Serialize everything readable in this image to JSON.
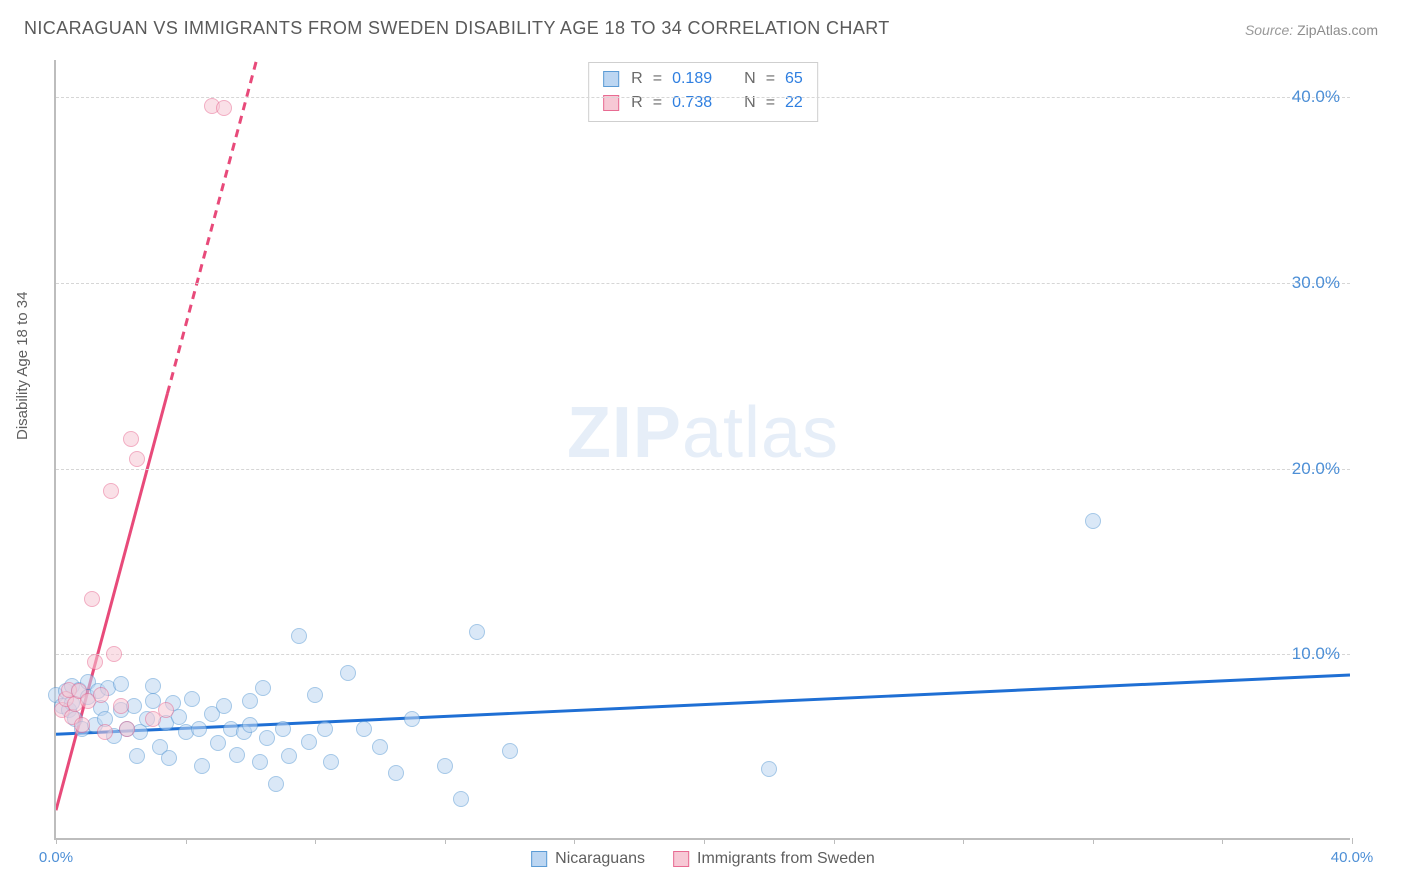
{
  "title": "NICARAGUAN VS IMMIGRANTS FROM SWEDEN DISABILITY AGE 18 TO 34 CORRELATION CHART",
  "source_label": "Source:",
  "source_value": "ZipAtlas.com",
  "y_axis_label": "Disability Age 18 to 34",
  "watermark_a": "ZIP",
  "watermark_b": "atlas",
  "chart": {
    "type": "scatter",
    "xlim": [
      0,
      40
    ],
    "ylim": [
      0,
      42
    ],
    "x_ticks": [
      0,
      20,
      40
    ],
    "x_tick_labels": [
      "0.0%",
      "",
      "40.0%"
    ],
    "y_grid": [
      10,
      20,
      30,
      40
    ],
    "y_grid_labels": [
      "10.0%",
      "20.0%",
      "30.0%",
      "40.0%"
    ],
    "minor_x_ticks": [
      4,
      8,
      12,
      16,
      24,
      28,
      32,
      36
    ],
    "background_color": "#ffffff",
    "grid_color": "#d6d6d6",
    "axis_color": "#bdbdbd",
    "marker_radius": 8,
    "marker_stroke_width": 1.5,
    "series": [
      {
        "name": "Nicaraguans",
        "fill": "#bcd6f2",
        "stroke": "#5b9bd5",
        "fill_opacity": 0.55,
        "R": "0.189",
        "N": "65",
        "trend": {
          "x1": 0,
          "y1": 5.6,
          "x2": 40,
          "y2": 8.8,
          "color": "#1f6fd4",
          "width": 3,
          "dash": null
        },
        "points": [
          [
            0.0,
            7.8
          ],
          [
            0.2,
            7.2
          ],
          [
            0.3,
            8.0
          ],
          [
            0.4,
            7.0
          ],
          [
            0.5,
            7.4
          ],
          [
            0.5,
            8.3
          ],
          [
            0.6,
            6.5
          ],
          [
            0.7,
            8.1
          ],
          [
            0.8,
            6.0
          ],
          [
            1.0,
            7.7
          ],
          [
            1.0,
            8.5
          ],
          [
            1.2,
            6.2
          ],
          [
            1.3,
            8.0
          ],
          [
            1.4,
            7.1
          ],
          [
            1.5,
            6.5
          ],
          [
            1.6,
            8.2
          ],
          [
            1.8,
            5.6
          ],
          [
            2.0,
            7.0
          ],
          [
            2.0,
            8.4
          ],
          [
            2.2,
            6.0
          ],
          [
            2.4,
            7.2
          ],
          [
            2.5,
            4.5
          ],
          [
            2.6,
            5.8
          ],
          [
            2.8,
            6.5
          ],
          [
            3.0,
            7.5
          ],
          [
            3.0,
            8.3
          ],
          [
            3.2,
            5.0
          ],
          [
            3.4,
            6.3
          ],
          [
            3.5,
            4.4
          ],
          [
            3.6,
            7.4
          ],
          [
            3.8,
            6.6
          ],
          [
            4.0,
            5.8
          ],
          [
            4.2,
            7.6
          ],
          [
            4.4,
            6.0
          ],
          [
            4.5,
            4.0
          ],
          [
            4.8,
            6.8
          ],
          [
            5.0,
            5.2
          ],
          [
            5.2,
            7.2
          ],
          [
            5.4,
            6.0
          ],
          [
            5.6,
            4.6
          ],
          [
            5.8,
            5.8
          ],
          [
            6.0,
            7.5
          ],
          [
            6.0,
            6.2
          ],
          [
            6.3,
            4.2
          ],
          [
            6.4,
            8.2
          ],
          [
            6.5,
            5.5
          ],
          [
            6.8,
            3.0
          ],
          [
            7.0,
            6.0
          ],
          [
            7.2,
            4.5
          ],
          [
            7.5,
            11.0
          ],
          [
            7.8,
            5.3
          ],
          [
            8.0,
            7.8
          ],
          [
            8.3,
            6.0
          ],
          [
            8.5,
            4.2
          ],
          [
            9.0,
            9.0
          ],
          [
            9.5,
            6.0
          ],
          [
            10.0,
            5.0
          ],
          [
            10.5,
            3.6
          ],
          [
            11.0,
            6.5
          ],
          [
            12.0,
            4.0
          ],
          [
            12.5,
            2.2
          ],
          [
            13.0,
            11.2
          ],
          [
            14.0,
            4.8
          ],
          [
            22.0,
            3.8
          ],
          [
            32.0,
            17.2
          ]
        ]
      },
      {
        "name": "Immigrants from Sweden",
        "fill": "#f7c8d5",
        "stroke": "#e86b92",
        "fill_opacity": 0.55,
        "R": "0.738",
        "N": "22",
        "trend": {
          "x1": 0,
          "y1": 1.5,
          "x2": 6.2,
          "y2": 42,
          "color": "#e84a7a",
          "width": 3,
          "dash": "8 6",
          "solid_until_y": 24
        },
        "points": [
          [
            0.2,
            7.0
          ],
          [
            0.3,
            7.6
          ],
          [
            0.4,
            8.1
          ],
          [
            0.5,
            6.6
          ],
          [
            0.6,
            7.3
          ],
          [
            0.7,
            8.0
          ],
          [
            0.8,
            6.2
          ],
          [
            1.0,
            7.5
          ],
          [
            1.1,
            13.0
          ],
          [
            1.2,
            9.6
          ],
          [
            1.4,
            7.8
          ],
          [
            1.5,
            5.8
          ],
          [
            1.7,
            18.8
          ],
          [
            1.8,
            10.0
          ],
          [
            2.0,
            7.2
          ],
          [
            2.2,
            6.0
          ],
          [
            2.3,
            21.6
          ],
          [
            2.5,
            20.5
          ],
          [
            3.0,
            6.5
          ],
          [
            3.4,
            7.0
          ],
          [
            4.8,
            39.5
          ],
          [
            5.2,
            39.4
          ]
        ]
      }
    ],
    "legend": {
      "series1_label": "Nicaraguans",
      "series2_label": "Immigrants from Sweden"
    },
    "stats_box": {
      "r_label": "R",
      "n_label": "N",
      "eq": "="
    }
  }
}
